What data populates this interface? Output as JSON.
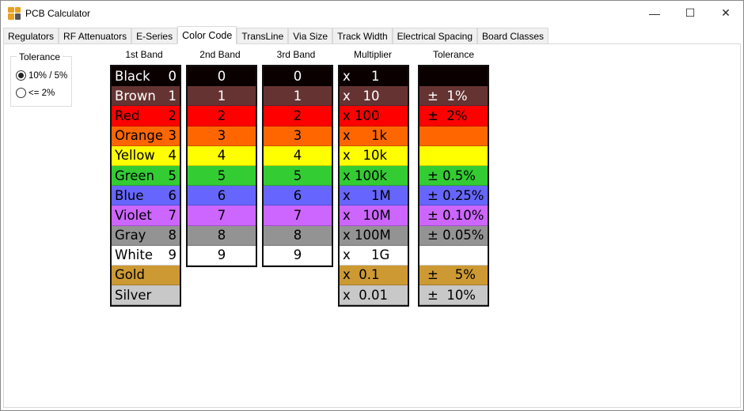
{
  "window": {
    "title": "PCB Calculator",
    "minimize": "—",
    "maximize": "☐",
    "close": "✕"
  },
  "tabs": [
    "Regulators",
    "RF Attenuators",
    "E-Series",
    "Color Code",
    "TransLine",
    "Via Size",
    "Track Width",
    "Electrical Spacing",
    "Board Classes"
  ],
  "active_tab": "Color Code",
  "tolerance_group": {
    "label": "Tolerance",
    "options": [
      {
        "label": "10% / 5%",
        "selected": true
      },
      {
        "label": "<= 2%",
        "selected": false
      }
    ]
  },
  "headers": {
    "band1": "1st Band",
    "band2": "2nd Band",
    "band3": "3rd Band",
    "multiplier": "Multiplier",
    "tolerance": "Tolerance"
  },
  "rows": [
    {
      "color": "#0a0000",
      "text": "#ffffff",
      "name": "Black",
      "digit": "0",
      "mult": "x     1",
      "tol": ""
    },
    {
      "color": "#663333",
      "text": "#ffffff",
      "name": "Brown",
      "digit": "1",
      "mult": "x   10",
      "tol": "±  1%"
    },
    {
      "color": "#ff0000",
      "text": "#000000",
      "name": "Red",
      "digit": "2",
      "mult": "x 100",
      "tol": "±  2%"
    },
    {
      "color": "#ff6600",
      "text": "#000000",
      "name": "Orange",
      "digit": "3",
      "mult": "x     1k",
      "tol": ""
    },
    {
      "color": "#ffff00",
      "text": "#000000",
      "name": "Yellow",
      "digit": "4",
      "mult": "x   10k",
      "tol": ""
    },
    {
      "color": "#33cc33",
      "text": "#000000",
      "name": "Green",
      "digit": "5",
      "mult": "x 100k",
      "tol": "± 0.5%"
    },
    {
      "color": "#6666ff",
      "text": "#000000",
      "name": "Blue",
      "digit": "6",
      "mult": "x     1M",
      "tol": "± 0.25%"
    },
    {
      "color": "#cc66ff",
      "text": "#000000",
      "name": "Violet",
      "digit": "7",
      "mult": "x   10M",
      "tol": "± 0.10%"
    },
    {
      "color": "#939393",
      "text": "#000000",
      "name": "Gray",
      "digit": "8",
      "mult": "x 100M",
      "tol": "± 0.05%"
    },
    {
      "color": "#ffffff",
      "text": "#000000",
      "name": "White",
      "digit": "9",
      "mult": "x     1G",
      "tol": ""
    },
    {
      "color": "#cc9933",
      "text": "#000000",
      "name": "Gold",
      "digit": "",
      "mult": "x  0.1",
      "tol": "±    5%"
    },
    {
      "color": "#c8c8c8",
      "text": "#000000",
      "name": "Silver",
      "digit": "",
      "mult": "x  0.01",
      "tol": "±  10%"
    }
  ]
}
